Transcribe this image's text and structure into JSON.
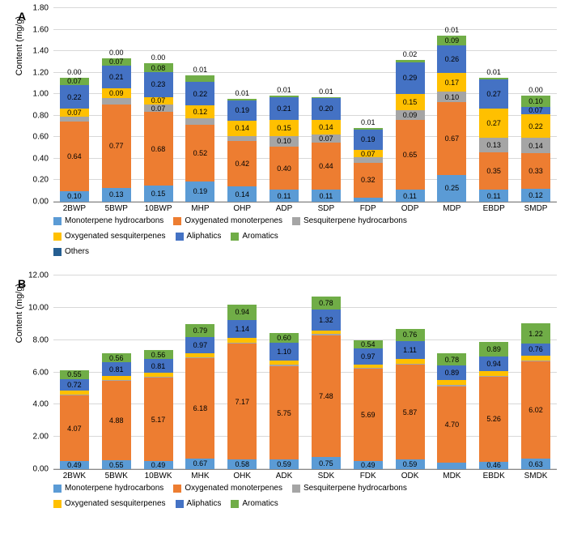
{
  "colors": {
    "Monoterpene hydrocarbons": "#5b9bd5",
    "Oxygenated monoterpenes": "#ed7d31",
    "Sesquiterpene hydrocarbons": "#a5a5a5",
    "Oxygenated sesquiterpenes": "#ffc000",
    "Aliphatics": "#4472c4",
    "Aromatics": "#70ad47",
    "Others": "#255e91"
  },
  "series_order": [
    "Monoterpene hydrocarbons",
    "Oxygenated monoterpenes",
    "Sesquiterpene hydrocarbons",
    "Oxygenated sesquiterpenes",
    "Aliphatics",
    "Aromatics",
    "Others"
  ],
  "legend_rows": [
    [
      "Monoterpene hydrocarbons",
      "Oxygenated monoterpenes",
      "Sesquiterpene hydrocarbons"
    ],
    [
      "Oxygenated sesquiterpenes",
      "Aliphatics",
      "Aromatics"
    ],
    [
      "Others"
    ]
  ],
  "legend_rows_B": [
    [
      "Monoterpene hydrocarbons",
      "Oxygenated monoterpenes",
      "Sesquiterpene hydrocarbons"
    ],
    [
      "Oxygenated sesquiterpenes",
      "Aliphatics",
      "Aromatics"
    ]
  ],
  "panels": {
    "A": {
      "ylabel": "Content (mg/g)",
      "ymax": 1.8,
      "ystep": 0.2,
      "ytick_fmt": 2,
      "categories": [
        "2BWP",
        "5BWP",
        "10BWP",
        "MHP",
        "OHP",
        "ADP",
        "SDP",
        "FDP",
        "ODP",
        "MDP",
        "EBDP",
        "SMDP"
      ],
      "data": {
        "2BWP": {
          "top": "0.00",
          "segs": {
            "Monoterpene hydrocarbons": 0.1,
            "Oxygenated monoterpenes": 0.64,
            "Sesquiterpene hydrocarbons": 0.05,
            "Oxygenated sesquiterpenes": 0.07,
            "Aliphatics": 0.22,
            "Aromatics": 0.07
          }
        },
        "5BWP": {
          "top": "0.00",
          "segs": {
            "Monoterpene hydrocarbons": 0.13,
            "Oxygenated monoterpenes": 0.77,
            "Sesquiterpene hydrocarbons": 0.06,
            "Oxygenated sesquiterpenes": 0.09,
            "Aliphatics": 0.21,
            "Aromatics": 0.07
          }
        },
        "10BWP": {
          "top": "0.00",
          "segs": {
            "Monoterpene hydrocarbons": 0.15,
            "Oxygenated monoterpenes": 0.68,
            "Sesquiterpene hydrocarbons": 0.07,
            "Oxygenated sesquiterpenes": 0.07,
            "Aliphatics": 0.23,
            "Aromatics": 0.08
          }
        },
        "MHP": {
          "top": "0.01",
          "segs": {
            "Monoterpene hydrocarbons": 0.19,
            "Oxygenated monoterpenes": 0.52,
            "Sesquiterpene hydrocarbons": 0.06,
            "Oxygenated sesquiterpenes": 0.12,
            "Aliphatics": 0.22,
            "Aromatics": 0.06
          }
        },
        "OHP": {
          "top": "0.01",
          "segs": {
            "Monoterpene hydrocarbons": 0.14,
            "Oxygenated monoterpenes": 0.42,
            "Sesquiterpene hydrocarbons": 0.05,
            "Oxygenated sesquiterpenes": 0.14,
            "Aliphatics": 0.19,
            "Aromatics": 0.01
          }
        },
        "ADP": {
          "top": "0.01",
          "segs": {
            "Monoterpene hydrocarbons": 0.11,
            "Oxygenated monoterpenes": 0.4,
            "Sesquiterpene hydrocarbons": 0.1,
            "Oxygenated sesquiterpenes": 0.15,
            "Aliphatics": 0.21,
            "Aromatics": 0.01
          }
        },
        "SDP": {
          "top": "0.01",
          "segs": {
            "Monoterpene hydrocarbons": 0.11,
            "Oxygenated monoterpenes": 0.44,
            "Sesquiterpene hydrocarbons": 0.07,
            "Oxygenated sesquiterpenes": 0.14,
            "Aliphatics": 0.2,
            "Aromatics": 0.01
          }
        },
        "FDP": {
          "top": "0.01",
          "segs": {
            "Monoterpene hydrocarbons": 0.04,
            "Oxygenated monoterpenes": 0.32,
            "Sesquiterpene hydrocarbons": 0.05,
            "Oxygenated sesquiterpenes": 0.07,
            "Aliphatics": 0.19,
            "Aromatics": 0.01
          }
        },
        "ODP": {
          "top": "0.02",
          "segs": {
            "Monoterpene hydrocarbons": 0.11,
            "Oxygenated monoterpenes": 0.65,
            "Sesquiterpene hydrocarbons": 0.09,
            "Oxygenated sesquiterpenes": 0.15,
            "Aliphatics": 0.29,
            "Aromatics": 0.02
          }
        },
        "MDP": {
          "top": "0.01",
          "segs": {
            "Monoterpene hydrocarbons": 0.25,
            "Oxygenated monoterpenes": 0.67,
            "Sesquiterpene hydrocarbons": 0.1,
            "Oxygenated sesquiterpenes": 0.17,
            "Aliphatics": 0.26,
            "Aromatics": 0.09
          }
        },
        "EBDP": {
          "top": "0.01",
          "segs": {
            "Monoterpene hydrocarbons": 0.11,
            "Oxygenated monoterpenes": 0.35,
            "Sesquiterpene hydrocarbons": 0.13,
            "Oxygenated sesquiterpenes": 0.27,
            "Aliphatics": 0.27,
            "Aromatics": 0.02
          }
        },
        "SMDP": {
          "top": "0.00",
          "segs": {
            "Monoterpene hydrocarbons": 0.12,
            "Oxygenated monoterpenes": 0.33,
            "Sesquiterpene hydrocarbons": 0.14,
            "Oxygenated sesquiterpenes": 0.22,
            "Aliphatics": 0.07,
            "Aromatics": 0.1
          }
        }
      }
    },
    "B": {
      "ylabel": "Content (mg/g)",
      "ymax": 12.0,
      "ystep": 2.0,
      "ytick_fmt": 2,
      "categories": [
        "2BWK",
        "5BWK",
        "10BWK",
        "MHK",
        "OHK",
        "ADK",
        "SDK",
        "FDK",
        "ODK",
        "MDK",
        "EBDK",
        "SMDK"
      ],
      "data": {
        "2BWK": {
          "segs": {
            "Monoterpene hydrocarbons": 0.49,
            "Oxygenated monoterpenes": 4.07,
            "Sesquiterpene hydrocarbons": 0.05,
            "Oxygenated sesquiterpenes": 0.23,
            "Aliphatics": 0.72,
            "Aromatics": 0.55
          }
        },
        "5BWK": {
          "segs": {
            "Monoterpene hydrocarbons": 0.55,
            "Oxygenated monoterpenes": 4.88,
            "Sesquiterpene hydrocarbons": 0.07,
            "Oxygenated sesquiterpenes": 0.27,
            "Aliphatics": 0.81,
            "Aromatics": 0.56
          }
        },
        "10BWK": {
          "segs": {
            "Monoterpene hydrocarbons": 0.49,
            "Oxygenated monoterpenes": 5.17,
            "Sesquiterpene hydrocarbons": 0.06,
            "Oxygenated sesquiterpenes": 0.25,
            "Aliphatics": 0.81,
            "Aromatics": 0.56
          }
        },
        "MHK": {
          "segs": {
            "Monoterpene hydrocarbons": 0.67,
            "Oxygenated monoterpenes": 6.18,
            "Sesquiterpene hydrocarbons": 0.03,
            "Oxygenated sesquiterpenes": 0.29,
            "Aliphatics": 0.97,
            "Aromatics": 0.79
          }
        },
        "OHK": {
          "segs": {
            "Monoterpene hydrocarbons": 0.58,
            "Oxygenated monoterpenes": 7.17,
            "Sesquiterpene hydrocarbons": 0.04,
            "Oxygenated sesquiterpenes": 0.29,
            "Aliphatics": 1.14,
            "Aromatics": 0.94
          }
        },
        "ADK": {
          "segs": {
            "Monoterpene hydrocarbons": 0.59,
            "Oxygenated monoterpenes": 5.75,
            "Sesquiterpene hydrocarbons": 0.09,
            "Oxygenated sesquiterpenes": 0.25,
            "Aliphatics": 1.1,
            "Aromatics": 0.6
          }
        },
        "SDK": {
          "segs": {
            "Monoterpene hydrocarbons": 0.75,
            "Oxygenated monoterpenes": 7.48,
            "Sesquiterpene hydrocarbons": 0.1,
            "Oxygenated sesquiterpenes": 0.2,
            "Aliphatics": 1.32,
            "Aromatics": 0.78
          }
        },
        "FDK": {
          "segs": {
            "Monoterpene hydrocarbons": 0.49,
            "Oxygenated monoterpenes": 5.69,
            "Sesquiterpene hydrocarbons": 0.07,
            "Oxygenated sesquiterpenes": 0.21,
            "Aliphatics": 0.97,
            "Aromatics": 0.54
          }
        },
        "ODK": {
          "segs": {
            "Monoterpene hydrocarbons": 0.59,
            "Oxygenated monoterpenes": 5.87,
            "Sesquiterpene hydrocarbons": 0.06,
            "Oxygenated sesquiterpenes": 0.27,
            "Aliphatics": 1.11,
            "Aromatics": 0.76
          }
        },
        "MDK": {
          "segs": {
            "Monoterpene hydrocarbons": 0.42,
            "Oxygenated monoterpenes": 4.7,
            "Sesquiterpene hydrocarbons": 0.06,
            "Oxygenated sesquiterpenes": 0.31,
            "Aliphatics": 0.89,
            "Aromatics": 0.78
          }
        },
        "EBDK": {
          "segs": {
            "Monoterpene hydrocarbons": 0.46,
            "Oxygenated monoterpenes": 5.26,
            "Sesquiterpene hydrocarbons": 0.04,
            "Oxygenated sesquiterpenes": 0.27,
            "Aliphatics": 0.94,
            "Aromatics": 0.89
          }
        },
        "SMDK": {
          "segs": {
            "Monoterpene hydrocarbons": 0.63,
            "Oxygenated monoterpenes": 6.02,
            "Sesquiterpene hydrocarbons": 0.03,
            "Oxygenated sesquiterpenes": 0.32,
            "Aliphatics": 0.76,
            "Aromatics": 1.22
          }
        }
      }
    }
  }
}
